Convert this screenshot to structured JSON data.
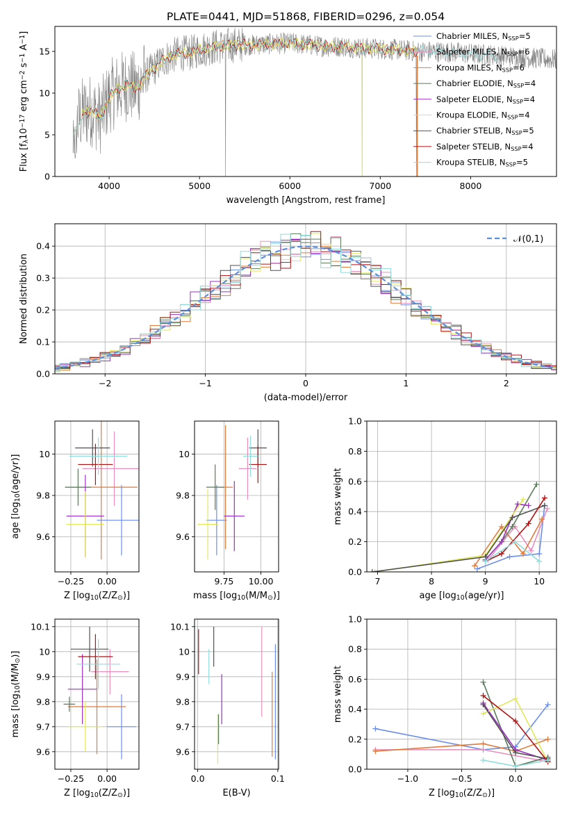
{
  "figure_title": "PLATE=0441, MJD=51868, FIBERID=0296, z=0.054",
  "series_names": [
    "Chabrier MILES, N$_{SSP}$=5",
    "Salpeter MILES, N$_{SSP}$=6",
    "Kroupa MILES, N$_{SSP}$=6",
    "Chabrier ELODIE, N$_{SSP}$=4",
    "Salpeter ELODIE, N$_{SSP}$=4",
    "Kroupa ELODIE, N$_{SSP}$=4",
    "Chabrier STELIB, N$_{SSP}$=5",
    "Salpeter STELIB, N$_{SSP}$=4",
    "Kroupa STELIB, N$_{SSP}$=5"
  ],
  "colors": {
    "spectrum": "#808080",
    "series": [
      "#6b8ee8",
      "#e88fbf",
      "#e07b39",
      "#5a7a5a",
      "#9b30c0",
      "#e0e85a",
      "#505050",
      "#b01010",
      "#8fdcdc"
    ],
    "gaussian": "#5b8fdb",
    "grid": "#b0b0b0"
  },
  "chart_data": [
    {
      "id": "spectrum",
      "type": "line",
      "title": "PLATE=0441, MJD=51868, FIBERID=0296, z=0.054",
      "xlabel": "wavelength [Angstrom, rest frame]",
      "ylabel": "Flux [f$_{\\lambda}$10$^{-17}$ erg cm$^{-2}$ s$^{-1}$ A$^{-1}$]",
      "xlim": [
        3400,
        8950
      ],
      "ylim": [
        0,
        18
      ],
      "xticks": [
        4000,
        5000,
        6000,
        7000,
        8000
      ],
      "yticks": [
        0,
        5,
        10,
        15
      ],
      "grid": false,
      "legend": "right",
      "continuum": {
        "x": [
          3600,
          3700,
          3800,
          3900,
          4000,
          4100,
          4200,
          4300,
          4400,
          4500,
          4600,
          4700,
          4800,
          4900,
          5000,
          5200,
          5400,
          5600,
          5800,
          6000,
          6200,
          6400,
          6600,
          6800,
          7000,
          7200,
          7400,
          7600,
          7800,
          8000,
          8200,
          8400,
          8600,
          8800,
          8950
        ],
        "y": [
          5.5,
          7.5,
          8.0,
          7.0,
          9.5,
          10.5,
          11.0,
          10.5,
          12.0,
          13.0,
          14.0,
          14.5,
          14.8,
          14.8,
          15.2,
          15.6,
          15.8,
          15.8,
          15.9,
          16.0,
          15.8,
          15.6,
          15.6,
          15.4,
          15.3,
          15.2,
          15.0,
          15.0,
          14.9,
          14.7,
          14.6,
          14.4,
          14.3,
          14.1,
          14.0
        ]
      }
    },
    {
      "id": "residuals",
      "type": "histogram",
      "xlabel": "(data-model)/error",
      "ylabel": "Normed distribution",
      "xlim": [
        -2.5,
        2.5
      ],
      "ylim": [
        0,
        0.47
      ],
      "xticks": [
        -2,
        -1,
        0,
        1,
        2
      ],
      "yticks": [
        0.0,
        0.1,
        0.2,
        0.3,
        0.4
      ],
      "grid": true,
      "legend": "top-right",
      "legend_label": "$\\mathcal{N}(0,1)$",
      "bin_width": 0.1
    },
    {
      "id": "age_vs_Z",
      "type": "scatter",
      "xlabel": "Z [log$_{10}$(Z/Z$_{\\odot}$)]",
      "ylabel": "age  [log$_{10}$(age/yr)]",
      "xlim": [
        -0.36,
        0.22
      ],
      "ylim": [
        9.43,
        10.16
      ],
      "xticks": [
        -0.25,
        0.0
      ],
      "xticklabels": [
        "−0.25",
        "0.00"
      ],
      "yticks": [
        9.6,
        9.8,
        10.0
      ],
      "grid": true,
      "points": [
        {
          "x": 0.1,
          "y": 9.68,
          "xerr": 0.17,
          "yerr": 0.17
        },
        {
          "x": 0.05,
          "y": 9.93,
          "xerr": 0.22,
          "yerr": 0.18
        },
        {
          "x": -0.04,
          "y": 9.84,
          "xerr": 0.25,
          "yerr": 0.35
        },
        {
          "x": -0.2,
          "y": 9.84,
          "xerr": 0.09,
          "yerr": 0.09
        },
        {
          "x": -0.15,
          "y": 9.7,
          "xerr": 0.13,
          "yerr": 0.2
        },
        {
          "x": -0.15,
          "y": 9.66,
          "xerr": 0.13,
          "yerr": 0.16
        },
        {
          "x": -0.1,
          "y": 10.03,
          "xerr": 0.12,
          "yerr": 0.09
        },
        {
          "x": -0.08,
          "y": 9.95,
          "xerr": 0.12,
          "yerr": 0.1
        },
        {
          "x": -0.06,
          "y": 9.99,
          "xerr": 0.2,
          "yerr": 0.09
        }
      ]
    },
    {
      "id": "age_vs_mass",
      "type": "scatter",
      "xlabel": "mass [log$_{10}$(M/M$_{\\odot}$)]",
      "ylabel": "",
      "xlim": [
        9.55,
        10.12
      ],
      "ylim": [
        9.43,
        10.16
      ],
      "xticks": [
        9.75,
        10.0
      ],
      "xticklabels": [
        "9.75",
        "10.00"
      ],
      "yticks": [
        9.6,
        9.8,
        10.0
      ],
      "grid": true,
      "points": [
        {
          "x": 9.7,
          "y": 9.68,
          "xerr": 0.07,
          "yerr": 0.17
        },
        {
          "x": 9.91,
          "y": 9.93,
          "xerr": 0.06,
          "yerr": 0.15
        },
        {
          "x": 9.76,
          "y": 9.84,
          "xerr": 0.05,
          "yerr": 0.3
        },
        {
          "x": 9.69,
          "y": 9.84,
          "xerr": 0.06,
          "yerr": 0.11
        },
        {
          "x": 9.82,
          "y": 9.7,
          "xerr": 0.07,
          "yerr": 0.17
        },
        {
          "x": 9.64,
          "y": 9.66,
          "xerr": 0.07,
          "yerr": 0.17
        },
        {
          "x": 9.98,
          "y": 10.03,
          "xerr": 0.06,
          "yerr": 0.09
        },
        {
          "x": 9.98,
          "y": 9.95,
          "xerr": 0.06,
          "yerr": 0.09
        },
        {
          "x": 9.93,
          "y": 9.99,
          "xerr": 0.05,
          "yerr": 0.1
        }
      ]
    },
    {
      "id": "weight_vs_age",
      "type": "line",
      "xlabel": "age  [log$_{10}$(age/yr)]",
      "ylabel": "mass weight",
      "xlim": [
        6.8,
        10.32
      ],
      "ylim": [
        0,
        1
      ],
      "xticks": [
        7,
        8,
        9,
        10
      ],
      "yticks": [
        0.0,
        0.2,
        0.4,
        0.6,
        0.8,
        1.0
      ],
      "grid": true,
      "series": [
        {
          "x": [
            8.85,
            9.45,
            10.0,
            10.1
          ],
          "y": [
            0.02,
            0.1,
            0.12,
            0.44
          ]
        },
        {
          "x": [
            9.05,
            9.55,
            9.85,
            10.15
          ],
          "y": [
            0.08,
            0.3,
            0.14,
            0.42
          ]
        },
        {
          "x": [
            8.8,
            9.3,
            9.7,
            10.05
          ],
          "y": [
            0.04,
            0.3,
            0.12,
            0.35
          ]
        },
        {
          "x": [
            9.0,
            9.3,
            9.5,
            9.95
          ],
          "y": [
            0.08,
            0.2,
            0.3,
            0.58
          ]
        },
        {
          "x": [
            9.0,
            9.3,
            9.6,
            9.8
          ],
          "y": [
            0.08,
            0.2,
            0.45,
            0.44
          ]
        },
        {
          "x": [
            6.95,
            9.0,
            9.7
          ],
          "y": [
            0.0,
            0.11,
            0.48
          ]
        },
        {
          "x": [
            6.9,
            9.0,
            9.5,
            10.1
          ],
          "y": [
            0.0,
            0.1,
            0.36,
            0.44
          ]
        },
        {
          "x": [
            9.0,
            9.3,
            9.8,
            10.1
          ],
          "y": [
            0.07,
            0.12,
            0.32,
            0.49
          ]
        },
        {
          "x": [
            9.0,
            9.55,
            10.0
          ],
          "y": [
            0.07,
            0.2,
            0.07
          ]
        }
      ]
    },
    {
      "id": "mass_vs_Z",
      "type": "scatter",
      "xlabel": "Z [log$_{10}$(Z/Z$_{\\odot}$)]",
      "ylabel": "mass [log$_{10}$(M/M$_{\\odot}$)]",
      "xlim": [
        -0.36,
        0.22
      ],
      "ylim": [
        9.53,
        10.13
      ],
      "xticks": [
        -0.25,
        0.0
      ],
      "xticklabels": [
        "−0.25",
        "0.00"
      ],
      "yticks": [
        9.6,
        9.7,
        9.8,
        9.9,
        10.0,
        10.1
      ],
      "grid": true,
      "points": [
        {
          "x": 0.1,
          "y": 9.7,
          "xerr": 0.1,
          "yerr": 0.13
        },
        {
          "x": 0.02,
          "y": 9.92,
          "xerr": 0.13,
          "yerr": 0.09
        },
        {
          "x": -0.07,
          "y": 9.78,
          "xerr": 0.2,
          "yerr": 0.19
        },
        {
          "x": -0.26,
          "y": 9.79,
          "xerr": 0.04,
          "yerr": 0.03
        },
        {
          "x": -0.17,
          "y": 9.85,
          "xerr": 0.1,
          "yerr": 0.14
        },
        {
          "x": -0.15,
          "y": 9.7,
          "xerr": 0.12,
          "yerr": 0.1
        },
        {
          "x": -0.12,
          "y": 10.01,
          "xerr": 0.13,
          "yerr": 0.09
        },
        {
          "x": -0.08,
          "y": 9.98,
          "xerr": 0.12,
          "yerr": 0.09
        },
        {
          "x": -0.06,
          "y": 9.95,
          "xerr": 0.15,
          "yerr": 0.1
        }
      ]
    },
    {
      "id": "mass_vs_ebv",
      "type": "scatter",
      "xlabel": "E(B-V)",
      "ylabel": "",
      "xlim": [
        -0.004,
        0.101
      ],
      "ylim": [
        9.53,
        10.13
      ],
      "xticks": [
        0.0,
        0.1
      ],
      "xticklabels": [
        "0.0",
        "0.1"
      ],
      "yticks": [
        9.6,
        9.7,
        9.8,
        9.9,
        10.0,
        10.1
      ],
      "grid": true,
      "points": [
        {
          "x": 0.097,
          "y": 9.8,
          "xerr": 0,
          "yerr": 0.23
        },
        {
          "x": 0.08,
          "y": 9.92,
          "xerr": 0,
          "yerr": 0.18
        },
        {
          "x": 0.093,
          "y": 9.75,
          "xerr": 0,
          "yerr": 0.17
        },
        {
          "x": 0.026,
          "y": 9.69,
          "xerr": 0,
          "yerr": 0.06
        },
        {
          "x": 0.03,
          "y": 9.81,
          "xerr": 0,
          "yerr": 0.1
        },
        {
          "x": 0.025,
          "y": 9.65,
          "xerr": 0,
          "yerr": 0.1
        },
        {
          "x": 0.02,
          "y": 10.02,
          "xerr": 0,
          "yerr": 0.08
        },
        {
          "x": 0.001,
          "y": 10.0,
          "xerr": 0,
          "yerr": 0.09
        },
        {
          "x": 0.014,
          "y": 9.94,
          "xerr": 0,
          "yerr": 0.07
        }
      ]
    },
    {
      "id": "weight_vs_Z",
      "type": "line",
      "xlabel": "Z [log$_{10}$(Z/Z$_{\\odot}$)]",
      "ylabel": "mass weight",
      "xlim": [
        -1.38,
        0.38
      ],
      "ylim": [
        0,
        1
      ],
      "xticks": [
        -1.0,
        -0.5,
        0.0
      ],
      "xticklabels": [
        "−1.0",
        "−0.5",
        "0.0"
      ],
      "yticks": [
        0.0,
        0.2,
        0.4,
        0.6,
        0.8,
        1.0
      ],
      "grid": true,
      "series": [
        {
          "x": [
            -1.3,
            -0.3,
            0.0,
            0.3
          ],
          "y": [
            0.27,
            0.13,
            0.15,
            0.43
          ]
        },
        {
          "x": [
            -1.3,
            -0.3,
            0.3
          ],
          "y": [
            0.13,
            0.13,
            0.05
          ]
        },
        {
          "x": [
            -1.3,
            -0.3,
            0.0,
            0.3
          ],
          "y": [
            0.12,
            0.17,
            0.12,
            0.2
          ]
        },
        {
          "x": [
            -0.3,
            0.0,
            0.3
          ],
          "y": [
            0.58,
            0.02,
            0.08
          ]
        },
        {
          "x": [
            -0.3,
            0.0,
            0.3
          ],
          "y": [
            0.44,
            0.13,
            0.06
          ]
        },
        {
          "x": [
            -0.3,
            0.0,
            0.3
          ],
          "y": [
            0.37,
            0.47,
            0.05
          ]
        },
        {
          "x": [
            -0.3,
            0.0,
            0.3
          ],
          "y": [
            0.43,
            0.11,
            0.07
          ]
        },
        {
          "x": [
            -0.3,
            0.0,
            0.3
          ],
          "y": [
            0.49,
            0.32,
            0.05
          ]
        },
        {
          "x": [
            -0.3,
            0.0,
            0.3
          ],
          "y": [
            0.06,
            0.02,
            0.06
          ]
        }
      ]
    }
  ]
}
